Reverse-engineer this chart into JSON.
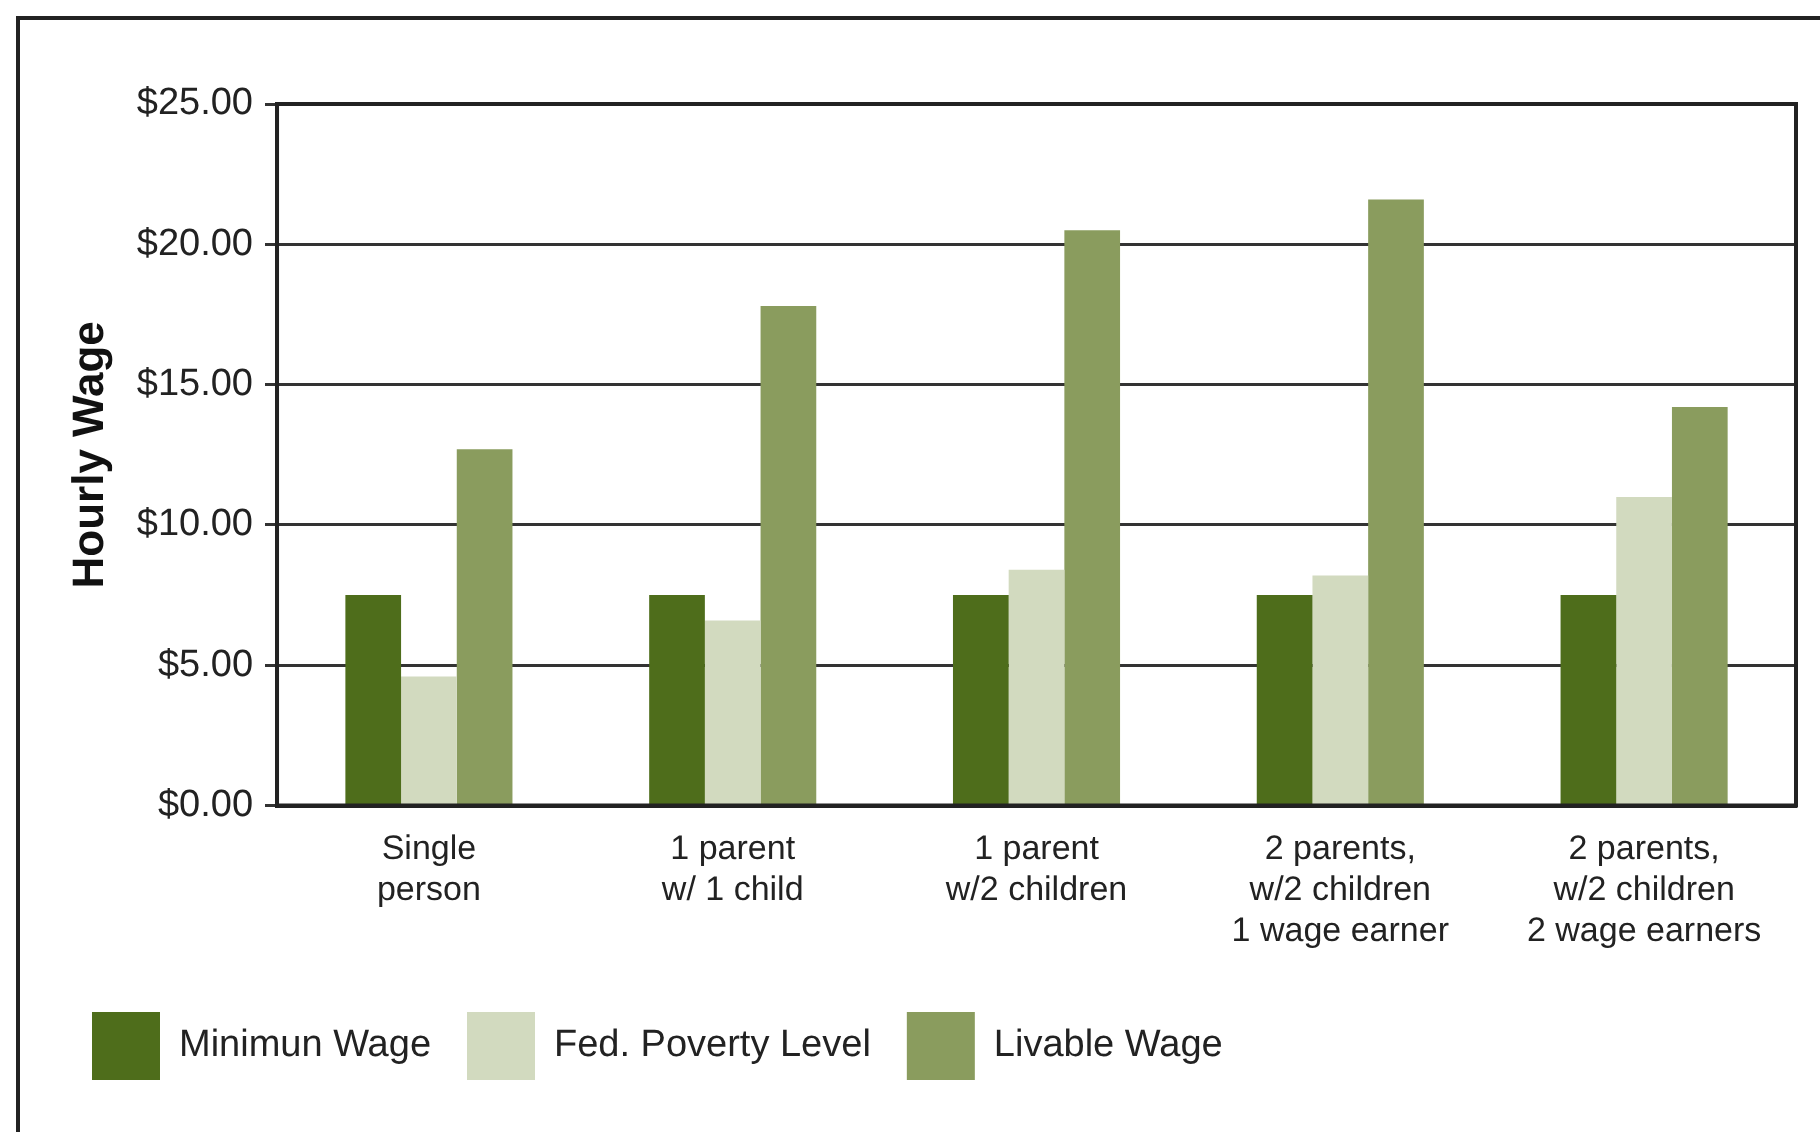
{
  "chart_data": {
    "type": "bar",
    "ylabel": "Hourly Wage",
    "categories": [
      "Single\nperson",
      "1 parent\nw/ 1 child",
      "1 parent\nw/2 children",
      "2 parents,\nw/2 children\n1 wage earner",
      "2 parents,\nw/2 children\n2 wage earners"
    ],
    "series": [
      {
        "name": "Minimun Wage",
        "color": "#4e6d1b",
        "values": [
          7.5,
          7.5,
          7.5,
          7.5,
          7.5
        ]
      },
      {
        "name": "Fed. Poverty Level",
        "color": "#d2dabf",
        "values": [
          4.6,
          6.6,
          8.4,
          8.2,
          11.0
        ]
      },
      {
        "name": "Livable Wage",
        "color": "#8a9c5e",
        "values": [
          12.7,
          17.8,
          20.5,
          21.6,
          14.2
        ]
      }
    ],
    "ylim": [
      0,
      25
    ],
    "yticks": [
      {
        "value": 0,
        "label": "$0.00"
      },
      {
        "value": 5,
        "label": "$5.00"
      },
      {
        "value": 10,
        "label": "$10.00"
      },
      {
        "value": 15,
        "label": "$15.00"
      },
      {
        "value": 20,
        "label": "$20.00"
      },
      {
        "value": 25,
        "label": "$25.00"
      }
    ],
    "grid": "y",
    "legend": "bottom"
  }
}
